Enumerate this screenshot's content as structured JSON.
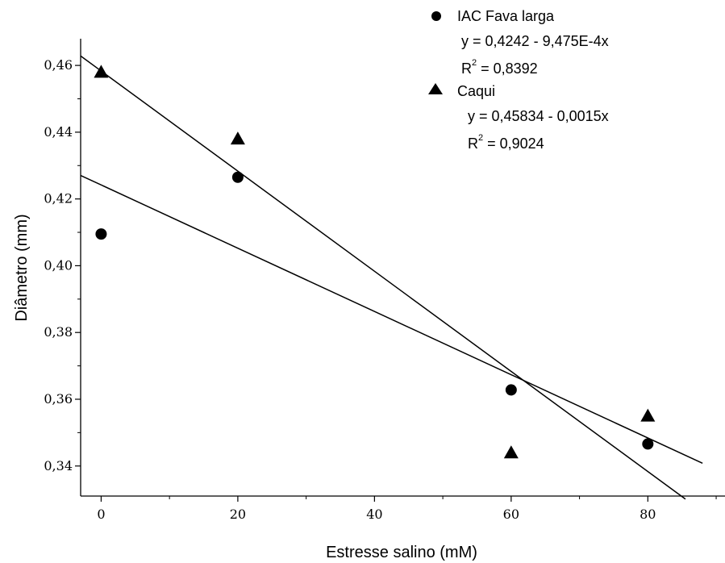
{
  "chart_data": {
    "type": "scatter",
    "xlabel": "Estresse salino (mM)",
    "ylabel": "Diâmetro (mm)",
    "xlim": [
      -3,
      92
    ],
    "ylim": [
      0.331,
      0.468
    ],
    "xticks": [
      0,
      20,
      40,
      60,
      80
    ],
    "xtick_labels": [
      "0",
      "20",
      "40",
      "60",
      "80"
    ],
    "yticks": [
      0.34,
      0.36,
      0.38,
      0.4,
      0.42,
      0.44,
      0.46
    ],
    "ytick_labels": [
      "0,34",
      "0,36",
      "0,38",
      "0,40",
      "0,42",
      "0,44",
      "0,46"
    ],
    "legend_position": "top-right",
    "series": [
      {
        "name": "IAC Fava larga",
        "marker": "circle",
        "color": "#000000",
        "x": [
          0,
          20,
          60,
          80
        ],
        "y": [
          0.4095,
          0.4265,
          0.3628,
          0.3466
        ],
        "fit": {
          "intercept": 0.4242,
          "slope": -0.0009475,
          "x_range": [
            -3,
            88
          ]
        },
        "equation": "y = 0,4242 - 9,475E-4x",
        "r2_prefix": "R",
        "r2_sup": "2",
        "r2_value": " = 0,8392"
      },
      {
        "name": "Caqui",
        "marker": "triangle",
        "color": "#000000",
        "x": [
          0,
          20,
          60,
          80
        ],
        "y": [
          0.458,
          0.438,
          0.344,
          0.355
        ],
        "fit": {
          "intercept": 0.45834,
          "slope": -0.0015,
          "x_range": [
            -3,
            85.5
          ]
        },
        "equation": "y = 0,45834 - 0,0015x",
        "r2_prefix": "R",
        "r2_sup": "2",
        "r2_value": " = 0,9024"
      }
    ]
  }
}
